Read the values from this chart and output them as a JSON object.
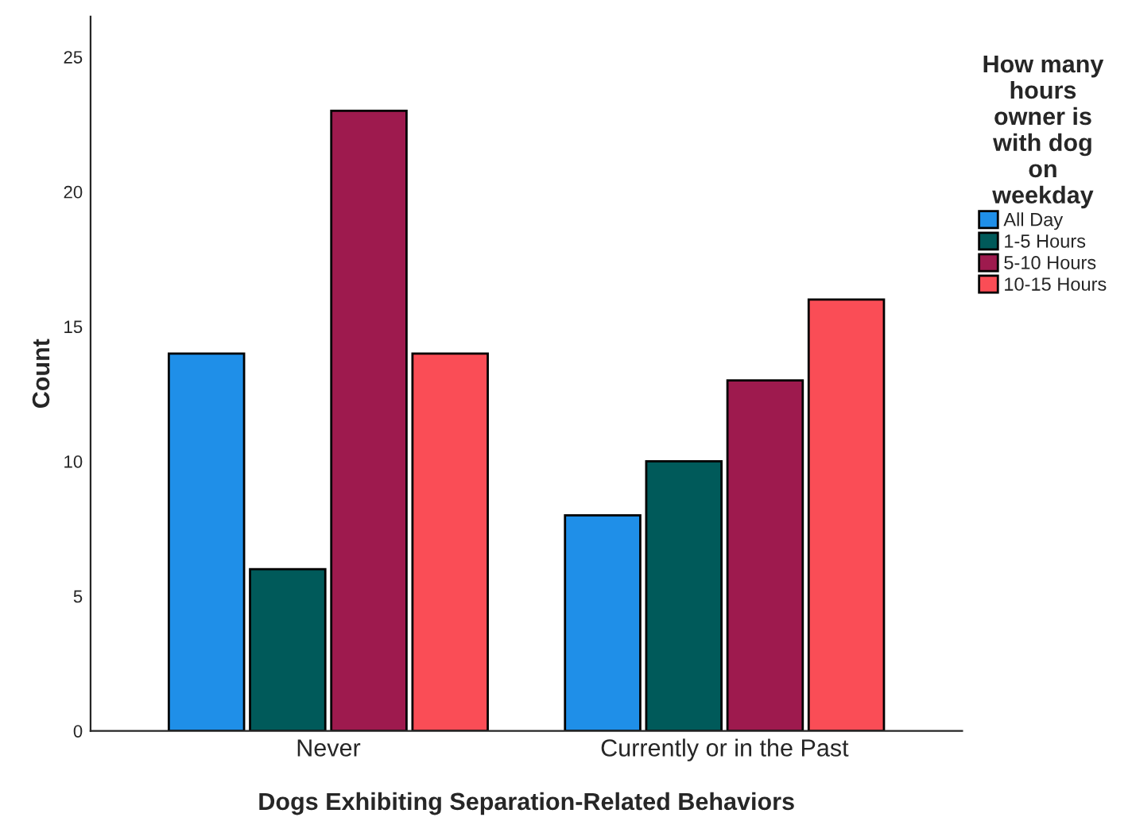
{
  "chart_data": {
    "type": "bar",
    "xlabel": "Dogs Exhibiting Separation-Related Behaviors",
    "ylabel": "Count",
    "legend_title": "How many hours owner is with dog on weekday",
    "legend": "right",
    "grid": false,
    "categories": [
      "Never",
      "Currently or in the Past"
    ],
    "series": [
      {
        "name": "All Day",
        "color": "#1f8fe8",
        "values": [
          14,
          8
        ]
      },
      {
        "name": "1-5 Hours",
        "color": "#005a5a",
        "values": [
          6,
          10
        ]
      },
      {
        "name": "5-10 Hours",
        "color": "#9e1a4e",
        "values": [
          23,
          13
        ]
      },
      {
        "name": "10-15 Hours",
        "color": "#fa4d56",
        "values": [
          14,
          16
        ]
      }
    ],
    "ylim": [
      0,
      26.5
    ],
    "yticks": [
      0,
      5,
      10,
      15,
      20,
      25
    ]
  }
}
